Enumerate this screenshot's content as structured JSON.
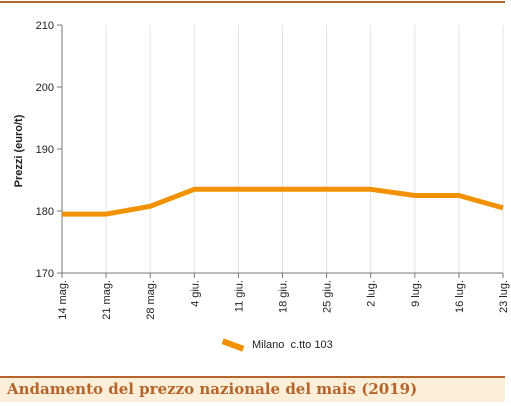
{
  "caption": "Andamento del prezzo nazionale del mais (2019)",
  "chart_data": {
    "type": "line",
    "title": "",
    "xlabel": "",
    "ylabel": "Prezzi (euro/t)",
    "ylim": [
      170,
      210
    ],
    "yticks": [
      170,
      180,
      190,
      200,
      210
    ],
    "grid": "vertical",
    "legend_position": "bottom",
    "categories": [
      "14 mag.",
      "21 mag.",
      "28 mag.",
      "4 giu.",
      "11 giu.",
      "18 giu.",
      "25 giu.",
      "2 lug.",
      "9 lug.",
      "16 lug.",
      "23 lug."
    ],
    "series": [
      {
        "name": "Milano  c.tto 103",
        "color": "#f39200",
        "values": [
          179.5,
          179.5,
          180.75,
          183.5,
          183.5,
          183.5,
          183.5,
          183.5,
          182.5,
          182.5,
          180.5
        ]
      }
    ]
  }
}
